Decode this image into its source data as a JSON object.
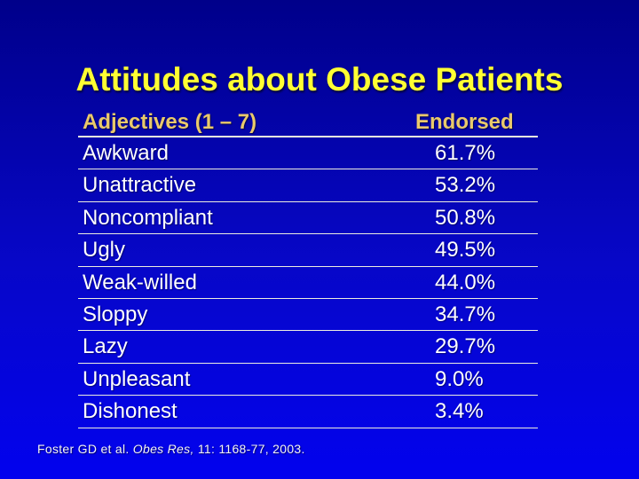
{
  "slide": {
    "title": "Attitudes about Obese Patients",
    "citation": {
      "prefix": "Foster GD et al. ",
      "journal_italic": "Obes Res,",
      "suffix": " 11: 1168-77, 2003."
    }
  },
  "table": {
    "headers": {
      "adjectives": "Adjectives (1 – 7)",
      "endorsed": "Endorsed"
    },
    "rows": [
      {
        "adjective": "Awkward",
        "endorsed": "61.7%"
      },
      {
        "adjective": "Unattractive",
        "endorsed": "53.2%"
      },
      {
        "adjective": "Noncompliant",
        "endorsed": "50.8%"
      },
      {
        "adjective": "Ugly",
        "endorsed": "49.5%"
      },
      {
        "adjective": "Weak-willed",
        "endorsed": "44.0%"
      },
      {
        "adjective": "Sloppy",
        "endorsed": "34.7%"
      },
      {
        "adjective": "Lazy",
        "endorsed": "29.7%"
      },
      {
        "adjective": "Unpleasant",
        "endorsed": "9.0%"
      },
      {
        "adjective": "Dishonest",
        "endorsed": "3.4%"
      }
    ]
  },
  "colors": {
    "bg_top": "#00008A",
    "bg_mid": "#0707C8",
    "bg_bottom": "#0202EE",
    "title": "#FFFF33",
    "header": "#E9C96B",
    "body_text": "#FFFFFF",
    "rule": "#EDEDE0"
  },
  "chart_data": {
    "type": "table",
    "title": "Attitudes about Obese Patients",
    "columns": [
      "Adjectives (1 – 7)",
      "Endorsed"
    ],
    "categories": [
      "Awkward",
      "Unattractive",
      "Noncompliant",
      "Ugly",
      "Weak-willed",
      "Sloppy",
      "Lazy",
      "Unpleasant",
      "Dishonest"
    ],
    "values": [
      61.7,
      53.2,
      50.8,
      49.5,
      44.0,
      34.7,
      29.7,
      9.0,
      3.4
    ],
    "value_unit": "%",
    "source": "Foster GD et al. Obes Res, 11: 1168-77, 2003."
  }
}
